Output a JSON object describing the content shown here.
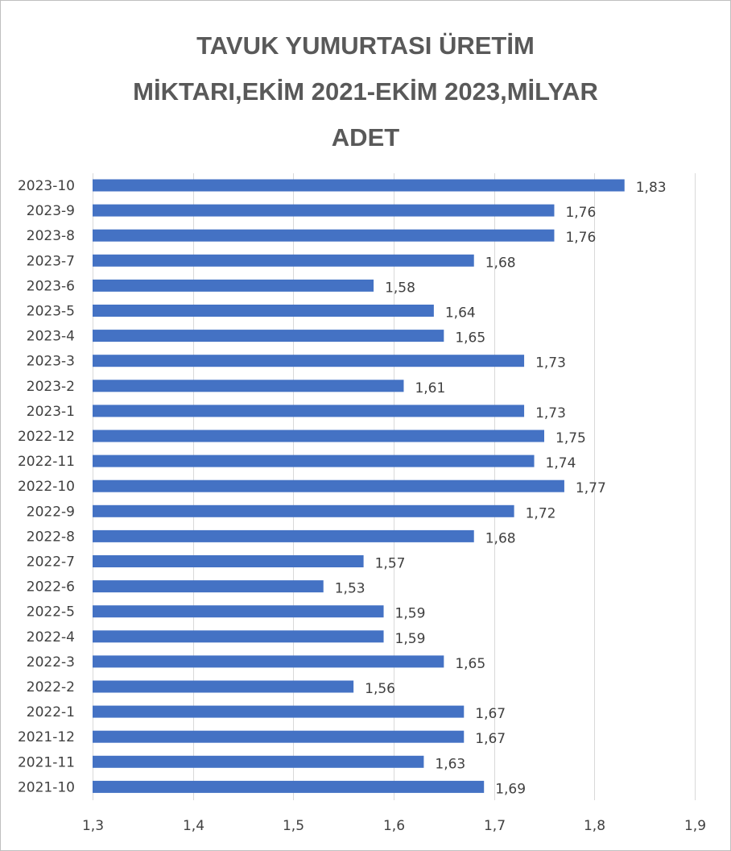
{
  "chart_data": {
    "type": "bar",
    "orientation": "horizontal",
    "title": "TAVUK YUMURTASI ÜRETİM MİKTARI,EKİM 2021-EKİM 2023,MİLYAR ADET",
    "title_lines": [
      "TAVUK YUMURTASI ÜRETİM",
      "MİKTARI,EKİM 2021-EKİM 2023,MİLYAR",
      "ADET"
    ],
    "xlabel": "",
    "ylabel": "",
    "xlim": [
      1.3,
      1.9
    ],
    "x_ticks": [
      1.3,
      1.4,
      1.5,
      1.6,
      1.7,
      1.8,
      1.9
    ],
    "x_tick_labels": [
      "1,3",
      "1,4",
      "1,5",
      "1,6",
      "1,7",
      "1,8",
      "1,9"
    ],
    "grid": "vertical",
    "legend": "none",
    "bar_color": "#4472C4",
    "categories": [
      "2023-10",
      "2023-9",
      "2023-8",
      "2023-7",
      "2023-6",
      "2023-5",
      "2023-4",
      "2023-3",
      "2023-2",
      "2023-1",
      "2022-12",
      "2022-11",
      "2022-10",
      "2022-9",
      "2022-8",
      "2022-7",
      "2022-6",
      "2022-5",
      "2022-4",
      "2022-3",
      "2022-2",
      "2022-1",
      "2021-12",
      "2021-11",
      "2021-10"
    ],
    "values": [
      1.83,
      1.76,
      1.76,
      1.68,
      1.58,
      1.64,
      1.65,
      1.73,
      1.61,
      1.73,
      1.75,
      1.74,
      1.77,
      1.72,
      1.68,
      1.57,
      1.53,
      1.59,
      1.59,
      1.65,
      1.56,
      1.67,
      1.67,
      1.63,
      1.69
    ],
    "value_labels": [
      "1,83",
      "1,76",
      "1,76",
      "1,68",
      "1,58",
      "1,64",
      "1,65",
      "1,73",
      "1,61",
      "1,73",
      "1,75",
      "1,74",
      "1,77",
      "1,72",
      "1,68",
      "1,57",
      "1,53",
      "1,59",
      "1,59",
      "1,65",
      "1,56",
      "1,67",
      "1,67",
      "1,63",
      "1,69"
    ]
  }
}
